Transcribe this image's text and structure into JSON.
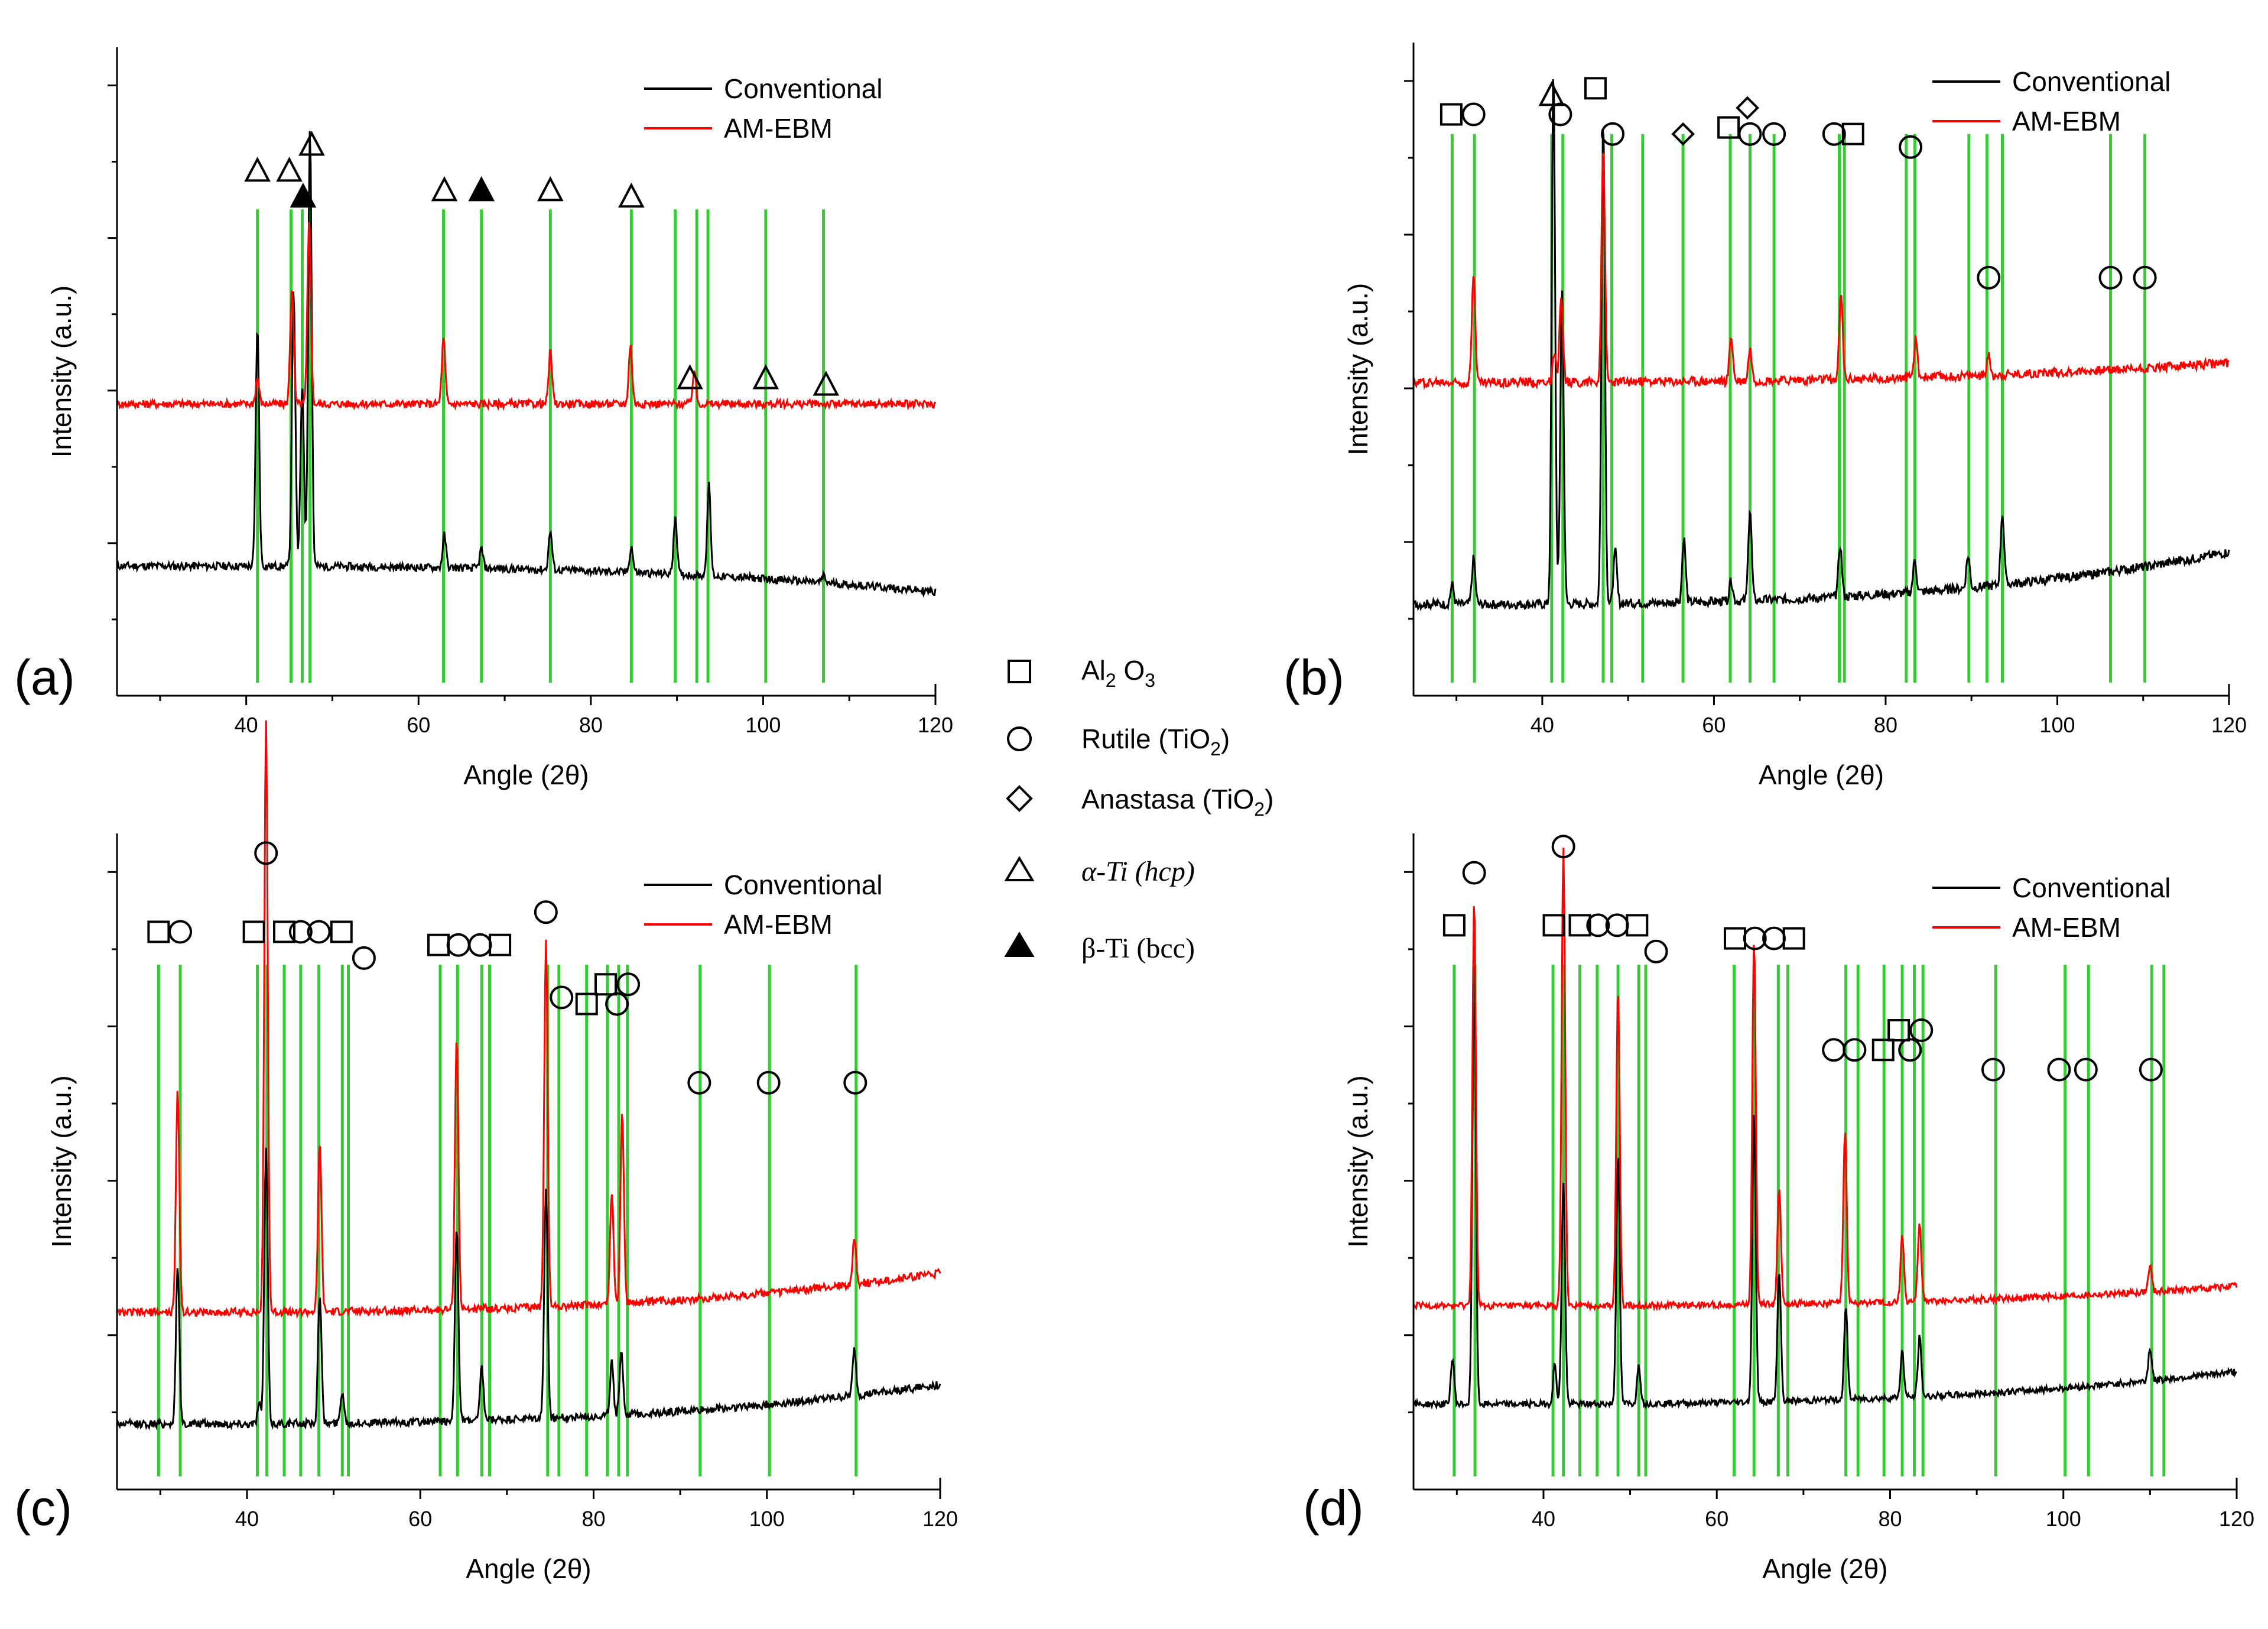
{
  "figure": {
    "colors": {
      "conventional": "#000000",
      "am_ebm": "#ff0000",
      "reference": "#33cc33",
      "axis": "#000000"
    }
  },
  "legend": {
    "conventional": "Conventional",
    "am_ebm": "AM-EBM"
  },
  "phase_key": [
    {
      "symbol": "square",
      "prefix": "Al",
      "sub": "2",
      "rest": " O",
      "sub2": "3",
      "tail": ""
    },
    {
      "symbol": "circle",
      "prefix": "Rutile (TiO",
      "sub": "2",
      "rest": ")",
      "sub2": "",
      "tail": ""
    },
    {
      "symbol": "diamond",
      "prefix": "Anastasa (TiO",
      "sub": "2",
      "rest": ")",
      "sub2": "",
      "tail": ""
    },
    {
      "symbol": "triangle",
      "prefix": "α-Ti (hcp)",
      "sub": "",
      "rest": "",
      "sub2": "",
      "tail": ""
    },
    {
      "symbol": "triangle-filled",
      "prefix": "β-Ti (bcc)",
      "sub": "",
      "rest": "",
      "sub2": "",
      "tail": ""
    }
  ],
  "chart_data": [
    {
      "panel": "(a)",
      "type": "line",
      "xlabel": "Angle (2θ)",
      "ylabel": "Intensity (a.u.)",
      "xlim": [
        25,
        120
      ],
      "xticks": [
        40,
        60,
        80,
        100,
        120
      ],
      "ylim": [
        0,
        100
      ],
      "series": [
        {
          "name": "Conventional",
          "baseline": 20,
          "end": 16,
          "noise": 0.6,
          "peaks": [
            [
              41.3,
              37
            ],
            [
              45.5,
              43
            ],
            [
              46.5,
              28
            ],
            [
              47.4,
              68
            ],
            [
              63,
              5
            ],
            [
              67.3,
              3
            ],
            [
              75.3,
              6
            ],
            [
              84.7,
              4
            ],
            [
              89.8,
              9
            ],
            [
              93.7,
              14
            ],
            [
              107,
              1
            ]
          ]
        },
        {
          "name": "AM-EBM",
          "baseline": 45,
          "end": 45,
          "noise": 0.6,
          "peaks": [
            [
              41.3,
              4
            ],
            [
              45.3,
              18
            ],
            [
              47.3,
              28
            ],
            [
              62.9,
              10
            ],
            [
              75.3,
              8
            ],
            [
              84.6,
              9
            ],
            [
              92,
              5
            ]
          ]
        }
      ],
      "reference_lines": [
        41.3,
        45.2,
        46.5,
        47.4,
        62.9,
        67.3,
        75.3,
        84.7,
        89.8,
        92.3,
        93.6,
        100.3,
        107
      ],
      "markers": [
        {
          "symbol": "triangle",
          "x": 41.3,
          "y": 81
        },
        {
          "symbol": "triangle",
          "x": 45.0,
          "y": 81
        },
        {
          "symbol": "triangle",
          "x": 47.6,
          "y": 85
        },
        {
          "symbol": "triangle-filled",
          "x": 46.6,
          "y": 77
        },
        {
          "symbol": "triangle",
          "x": 63,
          "y": 78
        },
        {
          "symbol": "triangle-filled",
          "x": 67.3,
          "y": 78
        },
        {
          "symbol": "triangle",
          "x": 75.3,
          "y": 78
        },
        {
          "symbol": "triangle",
          "x": 84.7,
          "y": 77
        },
        {
          "symbol": "triangle",
          "x": 91.5,
          "y": 49
        },
        {
          "symbol": "triangle",
          "x": 100.3,
          "y": 49
        },
        {
          "symbol": "triangle",
          "x": 107.3,
          "y": 48
        }
      ]
    },
    {
      "panel": "(b)",
      "type": "line",
      "xlabel": "Angle (2θ)",
      "ylabel": "Intensity (a.u.)",
      "xlim": [
        25,
        120
      ],
      "xticks": [
        40,
        60,
        80,
        100,
        120
      ],
      "ylim": [
        0,
        100
      ],
      "series": [
        {
          "name": "Conventional",
          "baseline": 14,
          "end": 22,
          "noise": 0.7,
          "peaks": [
            [
              29.5,
              3
            ],
            [
              32,
              7
            ],
            [
              41.3,
              82
            ],
            [
              42.3,
              48
            ],
            [
              47.1,
              74
            ],
            [
              48.5,
              8
            ],
            [
              56.5,
              10
            ],
            [
              62,
              3
            ],
            [
              64.2,
              14
            ],
            [
              74.7,
              8
            ],
            [
              83.4,
              5
            ],
            [
              89.6,
              5
            ],
            [
              93.6,
              11
            ]
          ]
        },
        {
          "name": "AM-EBM",
          "baseline": 48,
          "end": 51,
          "noise": 0.7,
          "peaks": [
            [
              32,
              17
            ],
            [
              41.4,
              4
            ],
            [
              42.2,
              13
            ],
            [
              47.1,
              36
            ],
            [
              62,
              7
            ],
            [
              64.2,
              5
            ],
            [
              74.8,
              13
            ],
            [
              83.5,
              6
            ],
            [
              92,
              3
            ]
          ]
        }
      ],
      "reference_lines": [
        29.5,
        32.1,
        41.1,
        42.4,
        47.1,
        48.1,
        51.7,
        56.4,
        61.9,
        64.2,
        67.0,
        74.6,
        75.2,
        82.4,
        83.4,
        89.7,
        91.8,
        93.6,
        106.2,
        110.2
      ],
      "markers": [
        {
          "symbol": "square",
          "x": 29.4,
          "y": 89
        },
        {
          "symbol": "circle",
          "x": 32.0,
          "y": 89
        },
        {
          "symbol": "triangle",
          "x": 41.1,
          "y": 92
        },
        {
          "symbol": "circle",
          "x": 42.1,
          "y": 89
        },
        {
          "symbol": "square",
          "x": 46.2,
          "y": 93
        },
        {
          "symbol": "circle",
          "x": 48.2,
          "y": 86
        },
        {
          "symbol": "diamond",
          "x": 56.4,
          "y": 86
        },
        {
          "symbol": "diamond",
          "x": 63.9,
          "y": 90
        },
        {
          "symbol": "square",
          "x": 61.7,
          "y": 87
        },
        {
          "symbol": "circle",
          "x": 64.2,
          "y": 86
        },
        {
          "symbol": "circle",
          "x": 67.0,
          "y": 86
        },
        {
          "symbol": "circle",
          "x": 74.0,
          "y": 86
        },
        {
          "symbol": "square",
          "x": 76.2,
          "y": 86
        },
        {
          "symbol": "circle",
          "x": 82.9,
          "y": 84
        },
        {
          "symbol": "circle",
          "x": 92.0,
          "y": 64
        },
        {
          "symbol": "circle",
          "x": 106.2,
          "y": 64
        },
        {
          "symbol": "circle",
          "x": 110.2,
          "y": 64
        }
      ]
    },
    {
      "panel": "(c)",
      "type": "line",
      "xlabel": "Angle (2θ)",
      "ylabel": "Intensity (a.u.)",
      "xlim": [
        25,
        120
      ],
      "xticks": [
        40,
        60,
        80,
        100,
        120
      ],
      "ylim": [
        0,
        100
      ],
      "series": [
        {
          "name": "Conventional",
          "baseline": 10,
          "end": 16,
          "noise": 0.6,
          "peaks": [
            [
              32,
              24
            ],
            [
              41.4,
              3
            ],
            [
              42.2,
              42
            ],
            [
              48.4,
              20
            ],
            [
              51,
              5
            ],
            [
              64.2,
              30
            ],
            [
              67.1,
              8
            ],
            [
              74.5,
              35
            ],
            [
              82.1,
              8
            ],
            [
              83.2,
              10
            ],
            [
              110.1,
              7
            ]
          ]
        },
        {
          "name": "AM-EBM",
          "baseline": 27,
          "end": 33,
          "noise": 0.6,
          "peaks": [
            [
              32,
              34
            ],
            [
              42.2,
              90
            ],
            [
              48.4,
              26
            ],
            [
              64.2,
              42
            ],
            [
              74.5,
              56
            ],
            [
              82.1,
              17
            ],
            [
              83.3,
              29
            ],
            [
              110.1,
              7
            ]
          ]
        }
      ],
      "reference_lines": [
        29.8,
        32.3,
        41.2,
        42.3,
        44.3,
        46.2,
        48.3,
        51.0,
        51.7,
        62.3,
        64.3,
        67.1,
        68.0,
        74.7,
        76.0,
        79.2,
        81.6,
        82.9,
        83.9,
        92.3,
        100.3,
        110.3
      ],
      "markers": [
        {
          "symbol": "square",
          "x": 29.8,
          "y": 85
        },
        {
          "symbol": "circle",
          "x": 32.3,
          "y": 85
        },
        {
          "symbol": "square",
          "x": 40.8,
          "y": 85
        },
        {
          "symbol": "circle",
          "x": 42.2,
          "y": 97
        },
        {
          "symbol": "square",
          "x": 44.3,
          "y": 85
        },
        {
          "symbol": "circle",
          "x": 46.2,
          "y": 85
        },
        {
          "symbol": "circle",
          "x": 48.3,
          "y": 85
        },
        {
          "symbol": "square",
          "x": 50.9,
          "y": 85
        },
        {
          "symbol": "circle",
          "x": 53.5,
          "y": 81
        },
        {
          "symbol": "square",
          "x": 62.1,
          "y": 83
        },
        {
          "symbol": "circle",
          "x": 64.4,
          "y": 83
        },
        {
          "symbol": "circle",
          "x": 66.9,
          "y": 83
        },
        {
          "symbol": "square",
          "x": 69.2,
          "y": 83
        },
        {
          "symbol": "circle",
          "x": 74.5,
          "y": 88
        },
        {
          "symbol": "circle",
          "x": 76.3,
          "y": 75
        },
        {
          "symbol": "square",
          "x": 79.2,
          "y": 74
        },
        {
          "symbol": "square",
          "x": 81.4,
          "y": 77
        },
        {
          "symbol": "circle",
          "x": 82.7,
          "y": 74
        },
        {
          "symbol": "circle",
          "x": 84.0,
          "y": 77
        },
        {
          "symbol": "circle",
          "x": 92.2,
          "y": 62
        },
        {
          "symbol": "circle",
          "x": 100.2,
          "y": 62
        },
        {
          "symbol": "circle",
          "x": 110.2,
          "y": 62
        }
      ]
    },
    {
      "panel": "(d)",
      "type": "line",
      "xlabel": "Angle (2θ)",
      "ylabel": "Intensity (a.u.)",
      "xlim": [
        25,
        120
      ],
      "xticks": [
        40,
        60,
        80,
        100,
        120
      ],
      "ylim": [
        0,
        100
      ],
      "series": [
        {
          "name": "Conventional",
          "baseline": 13,
          "end": 18,
          "noise": 0.5,
          "peaks": [
            [
              29.5,
              7
            ],
            [
              32,
              68
            ],
            [
              41.3,
              6
            ],
            [
              42.3,
              34
            ],
            [
              48.6,
              38
            ],
            [
              51,
              6
            ],
            [
              64.3,
              44
            ],
            [
              67.2,
              20
            ],
            [
              74.9,
              14
            ],
            [
              81.4,
              7
            ],
            [
              83.4,
              9
            ],
            [
              110,
              5
            ]
          ]
        },
        {
          "name": "AM-EBM",
          "baseline": 28,
          "end": 31,
          "noise": 0.5,
          "peaks": [
            [
              32,
              62
            ],
            [
              42.3,
              70
            ],
            [
              48.6,
              48
            ],
            [
              64.3,
              56
            ],
            [
              67.2,
              18
            ],
            [
              74.8,
              26
            ],
            [
              81.4,
              10
            ],
            [
              83.4,
              12
            ],
            [
              110,
              4
            ]
          ]
        }
      ],
      "reference_lines": [
        29.7,
        32.1,
        41.1,
        42.3,
        44.2,
        46.2,
        48.6,
        51.0,
        51.8,
        62.0,
        64.3,
        67.1,
        68.2,
        74.9,
        76.3,
        79.3,
        81.4,
        82.8,
        83.8,
        92.2,
        100.2,
        102.9,
        110.2,
        111.6
      ],
      "markers": [
        {
          "symbol": "square",
          "x": 29.7,
          "y": 86
        },
        {
          "symbol": "circle",
          "x": 32.0,
          "y": 94
        },
        {
          "symbol": "square",
          "x": 41.2,
          "y": 86
        },
        {
          "symbol": "circle",
          "x": 42.3,
          "y": 98
        },
        {
          "symbol": "square",
          "x": 44.2,
          "y": 86
        },
        {
          "symbol": "circle",
          "x": 46.3,
          "y": 86
        },
        {
          "symbol": "circle",
          "x": 48.5,
          "y": 86
        },
        {
          "symbol": "square",
          "x": 50.8,
          "y": 86
        },
        {
          "symbol": "circle",
          "x": 53.0,
          "y": 82
        },
        {
          "symbol": "square",
          "x": 62.1,
          "y": 84
        },
        {
          "symbol": "circle",
          "x": 64.4,
          "y": 84
        },
        {
          "symbol": "circle",
          "x": 66.6,
          "y": 84
        },
        {
          "symbol": "square",
          "x": 68.9,
          "y": 84
        },
        {
          "symbol": "circle",
          "x": 73.5,
          "y": 67
        },
        {
          "symbol": "circle",
          "x": 75.9,
          "y": 67
        },
        {
          "symbol": "square",
          "x": 79.2,
          "y": 67
        },
        {
          "symbol": "square",
          "x": 81.0,
          "y": 70
        },
        {
          "symbol": "circle",
          "x": 82.3,
          "y": 67
        },
        {
          "symbol": "circle",
          "x": 83.6,
          "y": 70
        },
        {
          "symbol": "circle",
          "x": 91.9,
          "y": 64
        },
        {
          "symbol": "circle",
          "x": 99.5,
          "y": 64
        },
        {
          "symbol": "circle",
          "x": 102.6,
          "y": 64
        },
        {
          "symbol": "circle",
          "x": 110.1,
          "y": 64
        }
      ]
    }
  ]
}
